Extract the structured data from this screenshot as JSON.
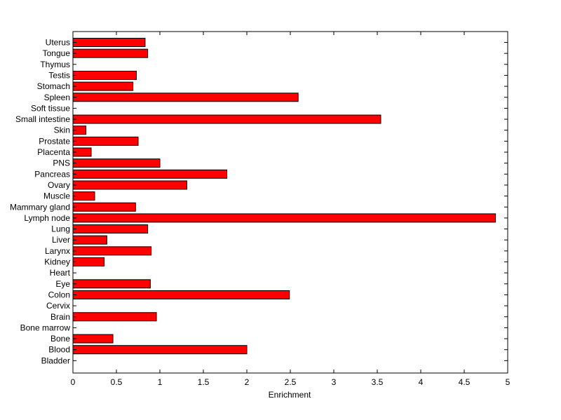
{
  "chart_data": {
    "type": "bar",
    "orientation": "horizontal",
    "title": "",
    "xlabel": "Enrichment",
    "ylabel": "",
    "xlim": [
      0,
      5
    ],
    "x_ticks": [
      "0",
      "0.5",
      "1",
      "1.5",
      "2",
      "2.5",
      "3",
      "3.5",
      "4",
      "4.5",
      "5"
    ],
    "grid": false,
    "legend": "none",
    "bar_color": "#ff0000",
    "bar_edge_color": "#000000",
    "categories": [
      "Uterus",
      "Tongue",
      "Thymus",
      "Testis",
      "Stomach",
      "Spleen",
      "Soft tissue",
      "Small intestine",
      "Skin",
      "Prostate",
      "Placenta",
      "PNS",
      "Pancreas",
      "Ovary",
      "Muscle",
      "Mammary gland",
      "Lymph node",
      "Lung",
      "Liver",
      "Larynx",
      "Kidney",
      "Heart",
      "Eye",
      "Colon",
      "Cervix",
      "Brain",
      "Bone marrow",
      "Bone",
      "Blood",
      "Bladder"
    ],
    "values": [
      0.83,
      0.86,
      0,
      0.73,
      0.69,
      2.59,
      0,
      3.54,
      0.15,
      0.75,
      0.21,
      1.0,
      1.77,
      1.31,
      0.25,
      0.72,
      4.86,
      0.86,
      0.39,
      0.9,
      0.36,
      0,
      0.89,
      2.49,
      0,
      0.96,
      0,
      0.46,
      2.0,
      0
    ]
  }
}
